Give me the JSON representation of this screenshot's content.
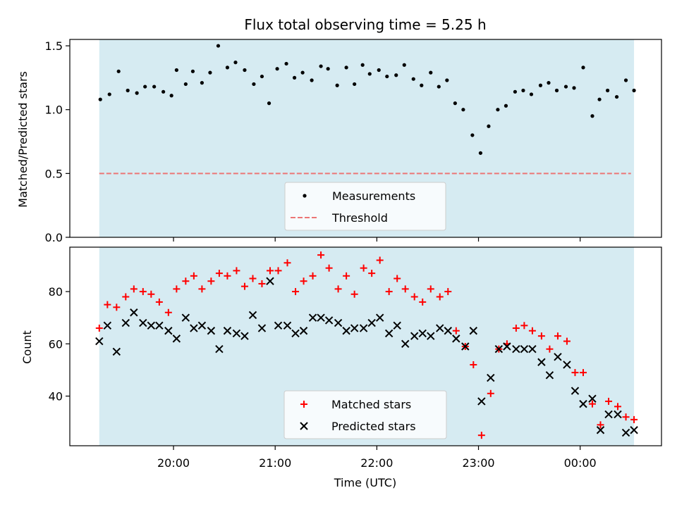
{
  "chart_data": [
    {
      "type": "scatter",
      "title": "Flux total observing time = 5.25 h",
      "ylabel": "Matched/Predicted stars",
      "xlabel": "",
      "ylim": [
        0,
        1.55
      ],
      "yticks": [
        0.0,
        0.5,
        1.0,
        1.5
      ],
      "ytick_labels": [
        "0.0",
        "0.5",
        "1.0",
        "1.5"
      ],
      "xlim_hours": [
        18.98,
        24.8
      ],
      "xticks_hours": [
        20,
        21,
        22,
        23,
        24
      ],
      "shaded_span_hours": [
        19.27,
        24.53
      ],
      "series": [
        {
          "name": "Measurements",
          "color": "#000000",
          "x_hours": [
            19.28,
            19.37,
            19.46,
            19.55,
            19.64,
            19.72,
            19.81,
            19.9,
            19.98,
            20.03,
            20.12,
            20.19,
            20.28,
            20.36,
            20.44,
            20.53,
            20.61,
            20.7,
            20.79,
            20.87,
            20.94,
            21.02,
            21.11,
            21.19,
            21.27,
            21.36,
            21.45,
            21.52,
            21.61,
            21.7,
            21.78,
            21.86,
            21.93,
            22.02,
            22.1,
            22.19,
            22.27,
            22.36,
            22.44,
            22.53,
            22.61,
            22.69,
            22.77,
            22.85,
            22.94,
            23.02,
            23.1,
            23.19,
            23.27,
            23.36,
            23.44,
            23.52,
            23.61,
            23.69,
            23.77,
            23.86,
            23.94,
            24.03,
            24.12,
            24.19,
            24.27,
            24.36,
            24.45,
            24.53
          ],
          "y": [
            1.08,
            1.12,
            1.3,
            1.15,
            1.13,
            1.18,
            1.18,
            1.14,
            1.11,
            1.31,
            1.2,
            1.3,
            1.21,
            1.29,
            1.5,
            1.33,
            1.37,
            1.31,
            1.2,
            1.26,
            1.05,
            1.32,
            1.36,
            1.25,
            1.29,
            1.23,
            1.34,
            1.32,
            1.19,
            1.33,
            1.2,
            1.35,
            1.28,
            1.31,
            1.26,
            1.27,
            1.35,
            1.24,
            1.19,
            1.29,
            1.18,
            1.23,
            1.05,
            1.0,
            0.8,
            0.66,
            0.87,
            1.0,
            1.03,
            1.14,
            1.15,
            1.12,
            1.19,
            1.21,
            1.15,
            1.18,
            1.17,
            1.33,
            0.95,
            1.08,
            1.15,
            1.1,
            1.23,
            1.15
          ]
        },
        {
          "name": "Threshold",
          "color": "#ec7676",
          "dashed": true,
          "value": 0.5,
          "x_range_hours": [
            19.27,
            24.5
          ]
        }
      ],
      "legend": {
        "placement": "lower-center",
        "items": [
          {
            "label": "Measurements",
            "marker": "dot",
            "color": "#000000"
          },
          {
            "label": "Threshold",
            "marker": "dash",
            "color": "#ec7676"
          }
        ]
      }
    },
    {
      "type": "scatter",
      "title": "",
      "ylabel": "Count",
      "xlabel": "Time (UTC)",
      "ylim": [
        21,
        97
      ],
      "yticks": [
        40,
        60,
        80
      ],
      "ytick_labels": [
        "40",
        "60",
        "80"
      ],
      "xlim_hours": [
        18.98,
        24.8
      ],
      "xticks_hours": [
        20,
        21,
        22,
        23,
        24
      ],
      "xtick_labels": [
        "20:00",
        "21:00",
        "22:00",
        "23:00",
        "00:00"
      ],
      "shaded_span_hours": [
        19.27,
        24.53
      ],
      "series": [
        {
          "name": "Matched stars",
          "marker": "plus",
          "color": "#ff0000",
          "x_hours": [
            19.27,
            19.35,
            19.44,
            19.53,
            19.61,
            19.7,
            19.78,
            19.86,
            19.95,
            20.03,
            20.12,
            20.2,
            20.28,
            20.37,
            20.45,
            20.53,
            20.62,
            20.7,
            20.78,
            20.87,
            20.95,
            21.03,
            21.12,
            21.2,
            21.28,
            21.37,
            21.45,
            21.53,
            21.62,
            21.7,
            21.78,
            21.87,
            21.95,
            22.03,
            22.12,
            22.2,
            22.28,
            22.37,
            22.45,
            22.53,
            22.62,
            22.7,
            22.78,
            22.87,
            22.95,
            23.03,
            23.12,
            23.2,
            23.28,
            23.37,
            23.45,
            23.53,
            23.62,
            23.7,
            23.78,
            23.87,
            23.95,
            24.03,
            24.12,
            24.2,
            24.28,
            24.37,
            24.45,
            24.53
          ],
          "y": [
            66,
            75,
            74,
            78,
            81,
            80,
            79,
            76,
            72,
            81,
            84,
            86,
            81,
            84,
            87,
            86,
            88,
            82,
            85,
            83,
            88,
            88,
            91,
            80,
            84,
            86,
            94,
            89,
            81,
            86,
            79,
            89,
            87,
            92,
            80,
            85,
            81,
            78,
            76,
            81,
            78,
            80,
            65,
            59,
            52,
            25,
            41,
            58,
            60,
            66,
            67,
            65,
            63,
            58,
            63,
            61,
            49,
            49,
            37,
            29,
            38,
            36,
            32,
            31
          ]
        },
        {
          "name": "Predicted stars",
          "marker": "x",
          "color": "#000000",
          "x_hours": [
            19.27,
            19.35,
            19.44,
            19.53,
            19.61,
            19.7,
            19.78,
            19.86,
            19.95,
            20.03,
            20.12,
            20.2,
            20.28,
            20.37,
            20.45,
            20.53,
            20.62,
            20.7,
            20.78,
            20.87,
            20.95,
            21.03,
            21.12,
            21.2,
            21.28,
            21.37,
            21.45,
            21.53,
            21.62,
            21.7,
            21.78,
            21.87,
            21.95,
            22.03,
            22.12,
            22.2,
            22.28,
            22.37,
            22.45,
            22.53,
            22.62,
            22.7,
            22.78,
            22.87,
            22.95,
            23.03,
            23.12,
            23.2,
            23.28,
            23.37,
            23.45,
            23.53,
            23.62,
            23.7,
            23.78,
            23.87,
            23.95,
            24.03,
            24.12,
            24.2,
            24.28,
            24.37,
            24.45,
            24.53
          ],
          "y": [
            61,
            67,
            57,
            68,
            72,
            68,
            67,
            67,
            65,
            62,
            70,
            66,
            67,
            65,
            58,
            65,
            64,
            63,
            71,
            66,
            84,
            67,
            67,
            64,
            65,
            70,
            70,
            69,
            68,
            65,
            66,
            66,
            68,
            70,
            64,
            67,
            60,
            63,
            64,
            63,
            66,
            65,
            62,
            59,
            65,
            38,
            47,
            58,
            59,
            58,
            58,
            58,
            53,
            48,
            55,
            52,
            42,
            37,
            39,
            27,
            33,
            33,
            26,
            27
          ]
        }
      ],
      "legend": {
        "placement": "lower-center",
        "items": [
          {
            "label": "Matched stars",
            "marker": "plus",
            "color": "#ff0000"
          },
          {
            "label": "Predicted stars",
            "marker": "x",
            "color": "#000000"
          }
        ]
      }
    }
  ],
  "colors": {
    "shade": "#add8e6",
    "shade_alpha": 0.5,
    "axis": "#000000",
    "legend_bg": "#ffffff"
  }
}
